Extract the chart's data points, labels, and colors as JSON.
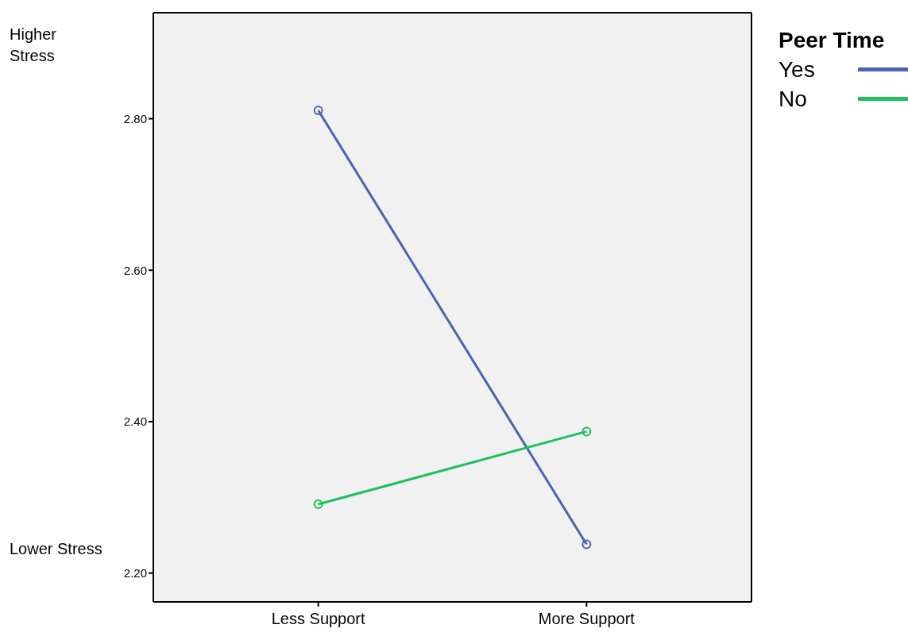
{
  "chart_data": {
    "type": "line",
    "categories": [
      "Less Support",
      "More Support"
    ],
    "series": [
      {
        "name": "Yes",
        "color": "#4a62b0",
        "values": [
          2.811,
          2.238
        ]
      },
      {
        "name": "No",
        "color": "#1fbf5f",
        "values": [
          2.291,
          2.387
        ]
      }
    ],
    "legend_title": "Peer Time",
    "legend": "top right",
    "marker": "circle",
    "line_style": "solid",
    "grid": false,
    "ylim": [
      2.162,
      2.94
    ],
    "yticks": [
      {
        "value": 2.2,
        "label": "2.20"
      },
      {
        "value": 2.4,
        "label": "2.40"
      },
      {
        "value": 2.6,
        "label": "2.60"
      },
      {
        "value": 2.8,
        "label": "2.80"
      }
    ],
    "annotations": [
      "Higher Stress",
      "Lower Stress"
    ]
  }
}
